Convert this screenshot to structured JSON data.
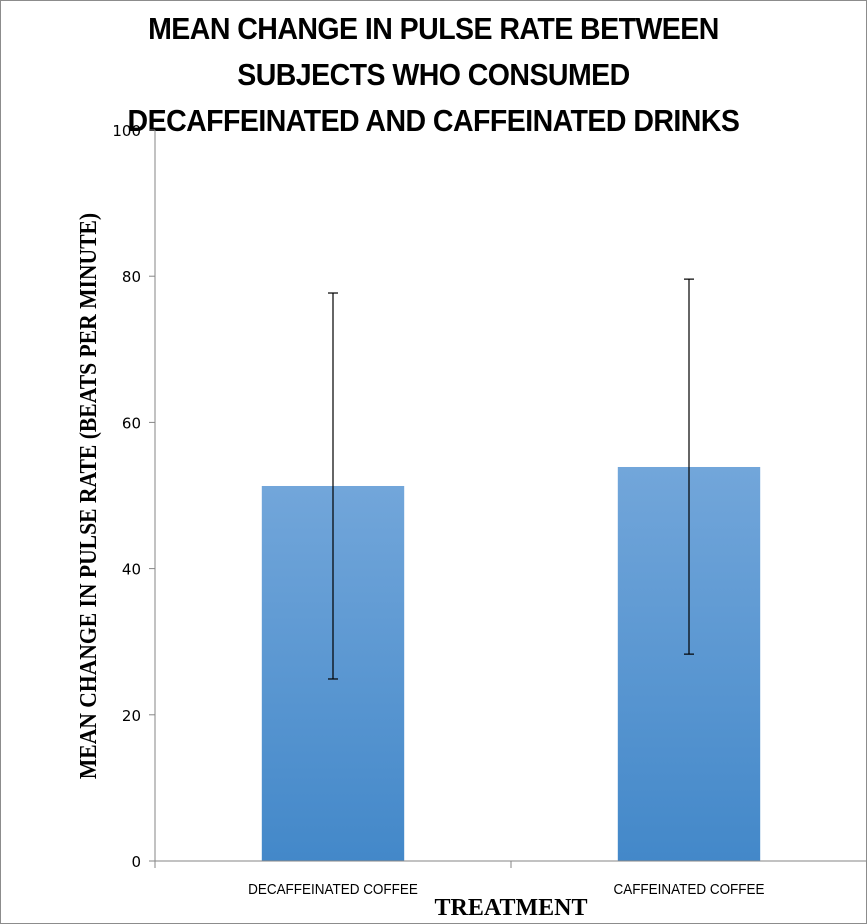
{
  "chart_data": {
    "type": "bar",
    "title_lines": [
      "MEAN CHANGE IN PULSE RATE BETWEEN",
      "SUBJECTS WHO CONSUMED",
      "DECAFFEINATED AND CAFFEINATED DRINKS"
    ],
    "xlabel": "TREATMENT",
    "ylabel": "MEAN CHANGE IN PULSE RATE (BEATS PER MINUTE)",
    "categories": [
      "DECAFFEINATED COFFEE",
      "CAFFEINATED COFFEE"
    ],
    "values": [
      51.3,
      53.9
    ],
    "error_bars": [
      {
        "lower": 24.9,
        "upper": 77.7
      },
      {
        "lower": 28.3,
        "upper": 79.6
      }
    ],
    "ylim": [
      0,
      100
    ],
    "yticks": [
      0,
      20,
      40,
      60,
      80,
      100
    ],
    "grid": false,
    "legend": "none",
    "colors": {
      "bar_top": "#72a6da",
      "bar_bottom": "#4388c9",
      "axis": "#868686",
      "error_bar": "#000000"
    }
  }
}
